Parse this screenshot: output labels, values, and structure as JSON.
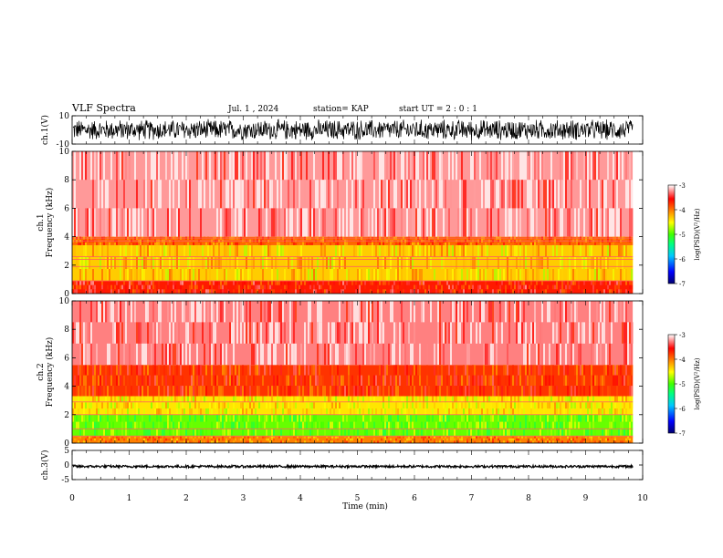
{
  "header": {
    "title": "VLF Spectra",
    "date": "Jul. 1 , 2024",
    "station": "station= KAP",
    "start": "start UT = 2 : 0 : 1"
  },
  "chart_data": [
    {
      "type": "line",
      "panel": "ch1-waveform",
      "ylabel": "ch.1(V)",
      "ylim": [
        -10,
        10
      ],
      "yticks": [
        "10",
        "-10"
      ],
      "x_range": [
        0,
        9.83
      ],
      "description_of_series": "dense noisy waveform filling roughly -8 to 8 V",
      "amplitude": 8
    },
    {
      "type": "heatmap",
      "panel": "ch1-spectrogram",
      "ylabel": "ch.1\nFrequency (kHz)",
      "ylabel_lines": [
        "ch.1",
        "Frequency (kHz)"
      ],
      "ylim": [
        0,
        10
      ],
      "yticks": [
        "0",
        "2",
        "4",
        "6",
        "8",
        "10"
      ],
      "x_range": [
        0,
        9.83
      ],
      "bands": [
        {
          "from": 0.0,
          "to": 0.9,
          "level": -3.6
        },
        {
          "from": 0.9,
          "to": 3.4,
          "level": -4.3
        },
        {
          "from": 3.4,
          "to": 4.0,
          "level": -3.9
        },
        {
          "from": 4.0,
          "to": 10.0,
          "level": -3.2
        }
      ],
      "lines_khz": [
        0.9,
        1.9,
        2.4,
        2.6,
        3.7,
        3.9
      ],
      "colorbar": {
        "label": "log(PSD)(V²/Hz)",
        "ticks": [
          "-3",
          "-4",
          "-5",
          "-6",
          "-7"
        ],
        "range": [
          -7,
          -3
        ]
      }
    },
    {
      "type": "heatmap",
      "panel": "ch2-spectrogram",
      "ylabel": "ch.2\nFrequency (kHz)",
      "ylabel_lines": [
        "ch.2",
        "Frequency (kHz)"
      ],
      "ylim": [
        0,
        10
      ],
      "yticks": [
        "0",
        "2",
        "4",
        "6",
        "8",
        "10"
      ],
      "x_range": [
        0,
        9.83
      ],
      "bands": [
        {
          "from": 0.0,
          "to": 0.5,
          "level": -4.0
        },
        {
          "from": 0.5,
          "to": 2.0,
          "level": -4.9
        },
        {
          "from": 2.0,
          "to": 3.3,
          "level": -4.4
        },
        {
          "from": 3.3,
          "to": 5.5,
          "level": -3.7
        },
        {
          "from": 5.5,
          "to": 10.0,
          "level": -3.25
        }
      ],
      "lines_khz": [
        0.5,
        1.0,
        2.0,
        2.9
      ],
      "colorbar": {
        "label": "log(PSD)(V²/Hz)",
        "ticks": [
          "-3",
          "-4",
          "-5",
          "-6",
          "-7"
        ],
        "range": [
          -7,
          -3
        ]
      }
    },
    {
      "type": "line",
      "panel": "ch3-waveform",
      "ylabel": "ch.3(V)",
      "ylim": [
        -5,
        5
      ],
      "yticks": [
        "5",
        "0",
        "-5"
      ],
      "x_range": [
        0,
        9.83
      ],
      "description_of_series": "near-constant trace around -0.5 V with small ripple",
      "offset": -0.5,
      "amplitude": 0.4,
      "xlabel": "Time (min)",
      "xlim": [
        0,
        10
      ],
      "xticks": [
        "0",
        "1",
        "2",
        "3",
        "4",
        "5",
        "6",
        "7",
        "8",
        "9",
        "10"
      ]
    }
  ],
  "colors": {
    "colormap": [
      "#000070",
      "#0000ff",
      "#00c8ff",
      "#00ff80",
      "#40ff00",
      "#ffff00",
      "#ff8000",
      "#ff0000",
      "#ffffff"
    ],
    "axis": "#000000"
  }
}
